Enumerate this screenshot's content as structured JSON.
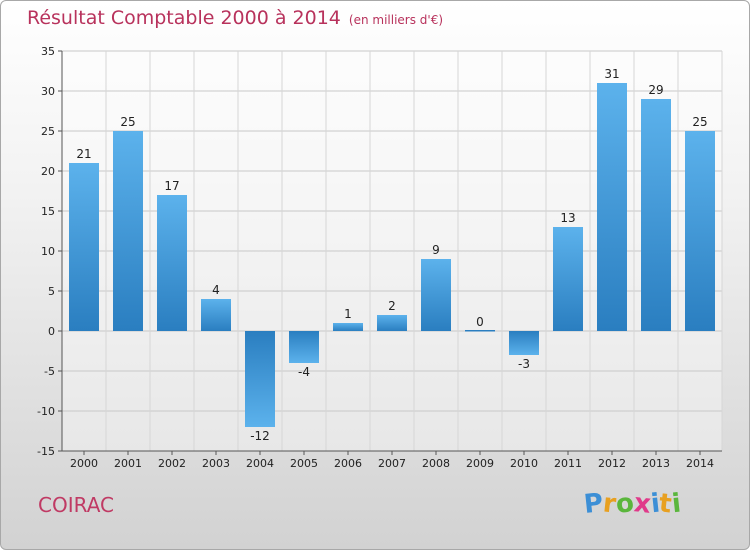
{
  "chart_data": {
    "type": "bar",
    "title": "Résultat Comptable 2000 à 2014",
    "subtitle": "(en milliers d'€)",
    "categories": [
      "2000",
      "2001",
      "2002",
      "2003",
      "2004",
      "2005",
      "2006",
      "2007",
      "2008",
      "2009",
      "2010",
      "2011",
      "2012",
      "2013",
      "2014"
    ],
    "values": [
      21,
      25,
      17,
      4,
      -12,
      -4,
      1,
      2,
      9,
      0,
      -3,
      13,
      31,
      29,
      25
    ],
    "ylim": [
      -15,
      35
    ],
    "yticks": [
      -15,
      -10,
      -5,
      0,
      5,
      10,
      15,
      20,
      25,
      30,
      35
    ],
    "xlabel": "",
    "ylabel": "",
    "grid": true,
    "bar_color_light": "#5cb2ec",
    "bar_color_dark": "#2a7ec0"
  },
  "commune": "COIRAC",
  "logo": {
    "letters": [
      "P",
      "r",
      "o",
      "x",
      "i",
      "t",
      "i"
    ],
    "colors": [
      "#3c8fd6",
      "#e8a020",
      "#5ab63c",
      "#e03a8a",
      "#3c8fd6",
      "#e8a020",
      "#5ab63c"
    ]
  }
}
